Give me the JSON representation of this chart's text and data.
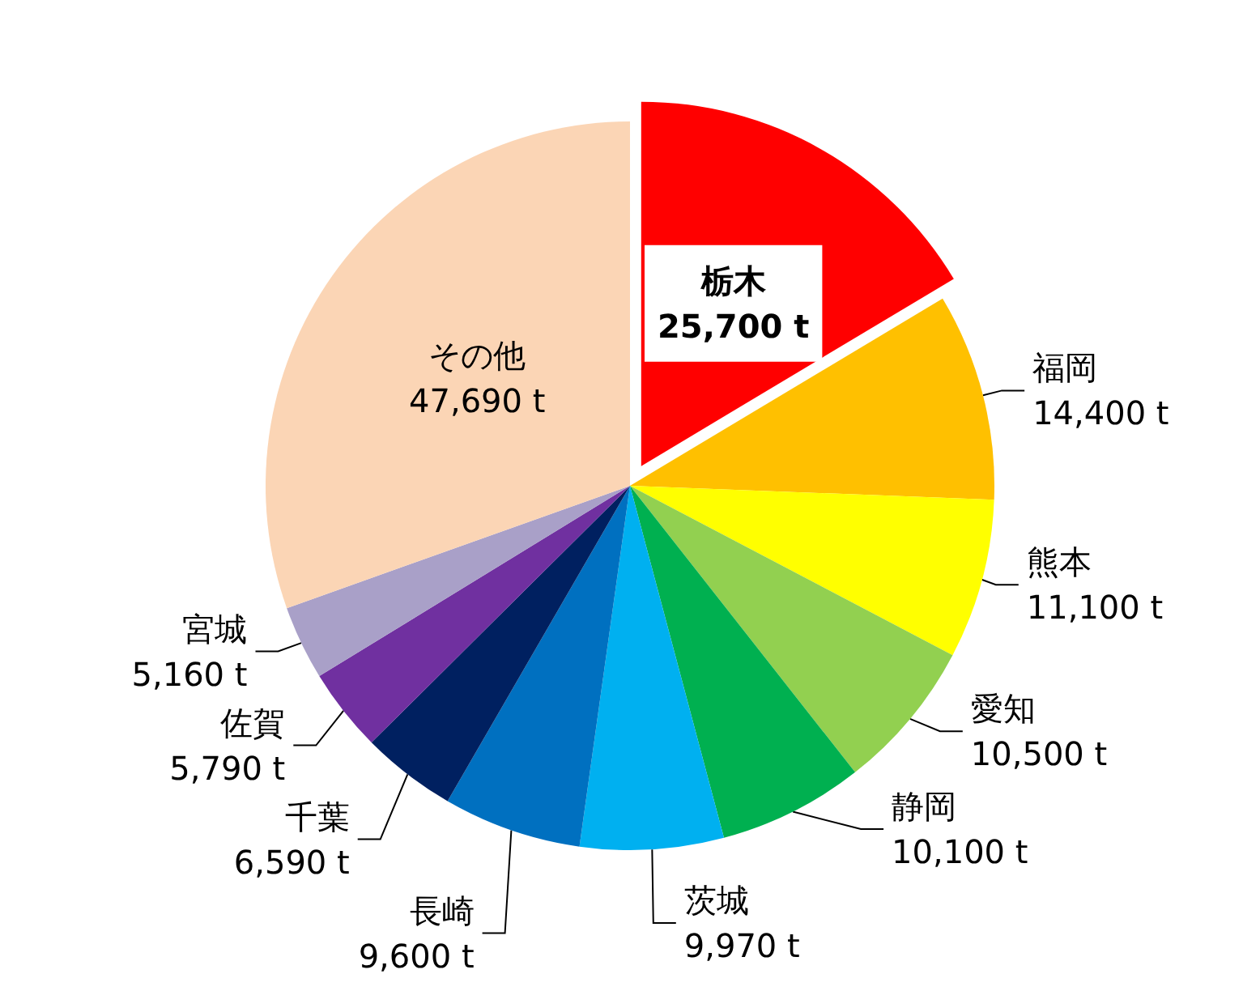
{
  "chart_data": {
    "type": "pie",
    "categories": [
      "栃木",
      "福岡",
      "熊本",
      "愛知",
      "静岡",
      "茨城",
      "長崎",
      "千葉",
      "佐賀",
      "宮城",
      "その他"
    ],
    "values": [
      25700,
      14400,
      11100,
      10500,
      10100,
      9970,
      9600,
      6590,
      5790,
      5160,
      47690
    ],
    "value_labels": [
      "25,700 t",
      "14,400 t",
      "11,100 t",
      "10,500 t",
      "10,100 t",
      "9,970 t",
      "9,600 t",
      "6,590 t",
      "5,790 t",
      "5,160 t",
      "47,690 t"
    ],
    "colors": [
      "#ff0000",
      "#ffc000",
      "#ffff00",
      "#92d050",
      "#00b050",
      "#00b0f0",
      "#0070c0",
      "#002060",
      "#7030a0",
      "#a9a0c8",
      "#fbd5b5"
    ]
  }
}
